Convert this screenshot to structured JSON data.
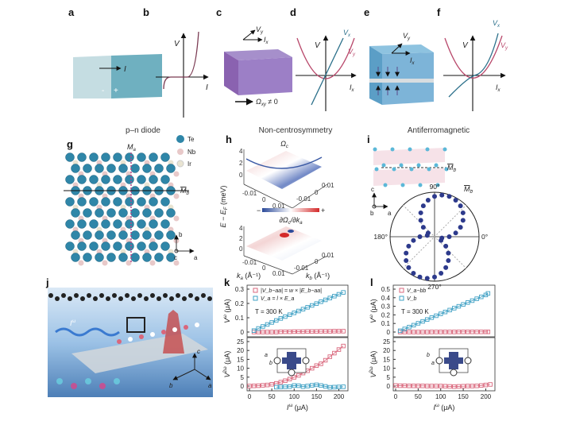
{
  "panels": {
    "labels": [
      "a",
      "b",
      "c",
      "d",
      "e",
      "f",
      "g",
      "h",
      "i",
      "j",
      "k",
      "l"
    ],
    "a": {
      "current": "I",
      "minus": "-",
      "plus": "+"
    },
    "b": {
      "v": "V",
      "i": "I"
    },
    "c": {
      "vy_base": "V",
      "vy_sub": "y",
      "ix_base": "I",
      "ix_sub": "x",
      "omega_base": "Ω",
      "omega_sub": "xy",
      "omega_rest": " ≠ 0"
    },
    "d": {
      "v": "V",
      "vx_base": "V",
      "vx_sub": "x",
      "vy_base": "V",
      "vy_sub": "y",
      "ix_base": "I",
      "ix_sub": "x"
    },
    "e": {
      "vy_base": "V",
      "vy_sub": "y",
      "ix_base": "I",
      "ix_sub": "x"
    },
    "f": {
      "v": "V",
      "vx_base": "V",
      "vx_sub": "x",
      "vy_base": "V",
      "vy_sub": "y",
      "ix_base": "I",
      "ix_sub": "x"
    },
    "captions": [
      "p–n diode",
      "Non-centrosymmetry",
      "Antiferromagnetic"
    ],
    "g": {
      "mirror_a_base": "M",
      "mirror_a_sub": "a",
      "mirror_b_base": "M",
      "mirror_b_sub": "b",
      "legend": [
        {
          "label": "Te",
          "color": "#2f86a8"
        },
        {
          "label": "Nb",
          "color": "#e8c9c9"
        },
        {
          "label": "Ir",
          "color": "#e9e4d2"
        }
      ],
      "axes": {
        "b": "b",
        "c": "c",
        "a": "a"
      }
    },
    "h": {
      "title_base": "Ω",
      "title_sub": "c",
      "ylabel": "E − E",
      "ylabel_sub": "F",
      "ylabel_unit": " (meV)",
      "yticks": [
        "4",
        "2",
        "0"
      ],
      "ka_ticks": [
        "-0.01",
        "0",
        "0.01"
      ],
      "kb_ticks": [
        "0.01",
        "0",
        "-0.01"
      ],
      "colorbar_label": "∂Ω",
      "colorbar_label_sub": "c",
      "colorbar_label_rest": "/∂k",
      "colorbar_label_sub2": "a",
      "colorbar_minus": "−",
      "colorbar_plus": "+",
      "ka_label": "k",
      "ka_sub": "a",
      "kb_label": "k",
      "kb_sub": "b",
      "k_unit": " (Å⁻¹)",
      "colors": {
        "negative": "#2b4a9a",
        "positive": "#d42a2a"
      }
    },
    "i": {
      "mirror_base": "M",
      "mirror_sub": "b",
      "angles": [
        "90°",
        "180°",
        "0°",
        "270°"
      ],
      "axes": {
        "c": "c",
        "b": "b",
        "a": "a"
      },
      "lobe_angle_deg": 70,
      "point_color": "#2d3a8c"
    },
    "j": {
      "current_base": "I",
      "current_sup": "ω",
      "axes": {
        "c": "c",
        "b": "b",
        "a": "a"
      }
    }
  },
  "chart_data": [
    {
      "panel": "k-top",
      "type": "scatter",
      "ylabel": "V",
      "ylabel_sup": "ω",
      "ylabel_unit": " (μA)",
      "ylim": [
        0,
        0.3
      ],
      "yticks": [
        "0",
        "0.1",
        "0.2",
        "0.3"
      ],
      "x": [
        10,
        20,
        30,
        40,
        50,
        60,
        70,
        80,
        90,
        100,
        110,
        120,
        130,
        140,
        150,
        160,
        170,
        180,
        190,
        200,
        210
      ],
      "series": [
        {
          "name": "|V_b−aa| = w × |E_b−aa|",
          "color": "#d9677c",
          "values": [
            0,
            0,
            0,
            0,
            0,
            0,
            0.002,
            0.002,
            0.002,
            0.003,
            0.003,
            0.003,
            0.004,
            0.004,
            0.004,
            0.005,
            0.005,
            0.005,
            0.006,
            0.006,
            0.006
          ]
        },
        {
          "name": "V_a = l × E_a",
          "color": "#3fa0c4",
          "values": [
            0.01,
            0.025,
            0.039,
            0.053,
            0.067,
            0.081,
            0.095,
            0.108,
            0.121,
            0.134,
            0.147,
            0.16,
            0.173,
            0.186,
            0.199,
            0.212,
            0.225,
            0.238,
            0.251,
            0.264,
            0.277
          ]
        }
      ],
      "annotation": "T = 300 K"
    },
    {
      "panel": "k-bottom",
      "type": "scatter",
      "xlabel": "I",
      "xlabel_sup": "ω",
      "xlabel_unit": " (μA)",
      "ylabel": "V",
      "ylabel_sup": "2ω",
      "ylabel_unit": " (μA)",
      "xlim": [
        0,
        215
      ],
      "xticks": [
        "0",
        "50",
        "100",
        "150",
        "200"
      ],
      "ylim": [
        -2,
        25
      ],
      "yticks": [
        "0",
        "5",
        "10",
        "15",
        "20",
        "25"
      ],
      "x": [
        0,
        10,
        20,
        30,
        40,
        50,
        60,
        70,
        80,
        90,
        100,
        110,
        120,
        130,
        140,
        150,
        160,
        170,
        180,
        190,
        200,
        210
      ],
      "series": [
        {
          "color": "#d9677c",
          "values": [
            0,
            0.1,
            0.2,
            0.4,
            0.6,
            1.0,
            1.5,
            2.2,
            3.0,
            3.9,
            4.9,
            6.0,
            7.3,
            8.6,
            10.0,
            11.5,
            12.5,
            14.5,
            16.5,
            18.5,
            20.5,
            22.5
          ]
        },
        {
          "color": "#3fa0c4",
          "values": [
            null,
            null,
            null,
            null,
            null,
            null,
            -0.6,
            -0.5,
            -0.4,
            -0.3,
            0.3,
            0.2,
            -0.3,
            0,
            0.4,
            0.7,
            0.3,
            -0.2,
            -0.7,
            -0.6,
            -0.5,
            -0.4
          ]
        }
      ],
      "inset_axes": {
        "a": "a",
        "b": "b"
      }
    },
    {
      "panel": "l-top",
      "type": "scatter",
      "ylabel": "V",
      "ylabel_sup": "ω",
      "ylabel_unit": " (μA)",
      "ylim": [
        0,
        0.5
      ],
      "yticks": [
        "0",
        "0.1",
        "0.2",
        "0.3",
        "0.4",
        "0.5"
      ],
      "x": [
        10,
        20,
        30,
        40,
        50,
        60,
        70,
        80,
        90,
        100,
        110,
        120,
        130,
        140,
        150,
        160,
        170,
        180,
        190,
        200,
        205
      ],
      "series": [
        {
          "name": "V_a−bb",
          "color": "#d9677c",
          "values": [
            0,
            0,
            0,
            0,
            0,
            0,
            0,
            0.001,
            0.001,
            0.001,
            0.001,
            0.001,
            0.001,
            0.002,
            0.002,
            0.002,
            0.002,
            0.002,
            0.002,
            0.002,
            0.002
          ]
        },
        {
          "name": "V_b",
          "color": "#3fa0c4",
          "values": [
            0.015,
            0.036,
            0.058,
            0.08,
            0.102,
            0.124,
            0.146,
            0.168,
            0.19,
            0.212,
            0.234,
            0.256,
            0.278,
            0.3,
            0.322,
            0.344,
            0.366,
            0.388,
            0.41,
            0.432,
            0.45
          ]
        }
      ],
      "annotation": "T = 300 K"
    },
    {
      "panel": "l-bottom",
      "type": "scatter",
      "xlabel": "I",
      "xlabel_sup": "ω",
      "xlabel_unit": " (μA)",
      "ylabel": "V",
      "ylabel_sup": "2ω",
      "ylabel_unit": " (μA)",
      "xlim": [
        0,
        215
      ],
      "xticks": [
        "0",
        "50",
        "100",
        "150",
        "200"
      ],
      "ylim": [
        -2,
        25
      ],
      "yticks": [
        "0",
        "5",
        "10",
        "15",
        "20",
        "25"
      ],
      "x": [
        0,
        10,
        20,
        30,
        40,
        50,
        60,
        70,
        80,
        90,
        100,
        110,
        120,
        130,
        140,
        150,
        160,
        170,
        180,
        190,
        200,
        210
      ],
      "series": [
        {
          "color": "#d9677c",
          "values": [
            0.3,
            0.2,
            0.2,
            0.1,
            0.1,
            0.1,
            0.1,
            0,
            0,
            0,
            0,
            -0.1,
            -0.2,
            -0.3,
            -0.2,
            -0.1,
            0,
            0,
            0.1,
            0.3,
            0.6,
            0.9
          ]
        }
      ],
      "inset_axes": {
        "b": "b",
        "a": "a"
      }
    }
  ]
}
